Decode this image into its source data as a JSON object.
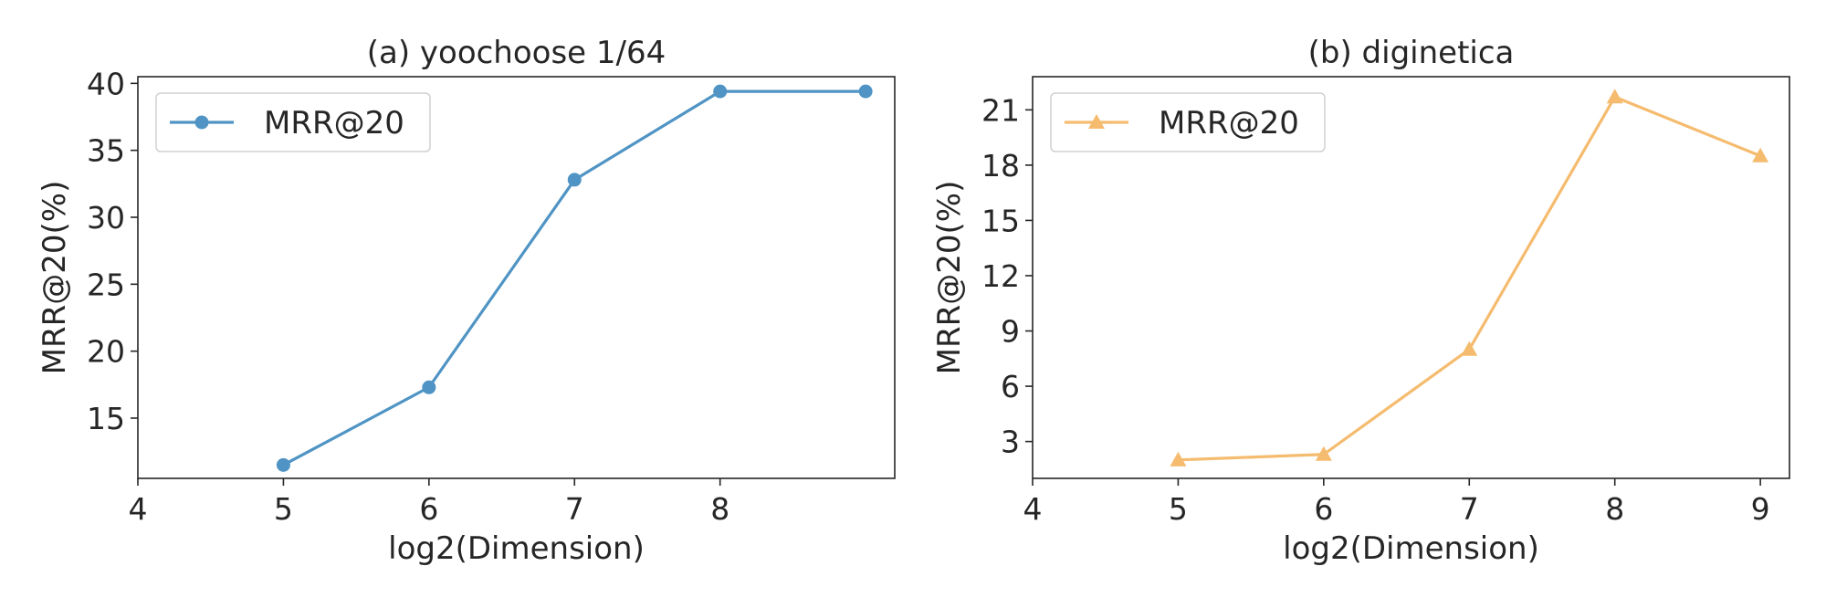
{
  "chart_data": [
    {
      "type": "line",
      "title": "(a) yoochoose 1/64",
      "xlabel": "log2(Dimension)",
      "ylabel": "MRR@20(%)",
      "xlim": [
        4,
        9.2
      ],
      "ylim": [
        10.5,
        40.5
      ],
      "xticks": [
        4,
        5,
        6,
        7,
        8
      ],
      "yticks": [
        15,
        20,
        25,
        30,
        35,
        40
      ],
      "legend": "top-left",
      "series": [
        {
          "name": "MRR@20",
          "marker": "circle",
          "color": "#4f94c4",
          "x": [
            5,
            6,
            7,
            8,
            9
          ],
          "y": [
            11.5,
            17.3,
            32.8,
            39.4,
            39.4
          ]
        }
      ]
    },
    {
      "type": "line",
      "title": "(b) diginetica",
      "xlabel": "log2(Dimension)",
      "ylabel": "MRR@20(%)",
      "xlim": [
        4,
        9.2
      ],
      "ylim": [
        1.0,
        22.8
      ],
      "xticks": [
        4,
        5,
        6,
        7,
        8,
        9
      ],
      "yticks": [
        3,
        6,
        9,
        12,
        15,
        18,
        21
      ],
      "legend": "top-left",
      "series": [
        {
          "name": "MRR@20",
          "marker": "triangle",
          "color": "#f5bb6e",
          "x": [
            5,
            6,
            7,
            8,
            9
          ],
          "y": [
            2.0,
            2.3,
            8.0,
            21.7,
            18.5
          ]
        }
      ]
    }
  ]
}
